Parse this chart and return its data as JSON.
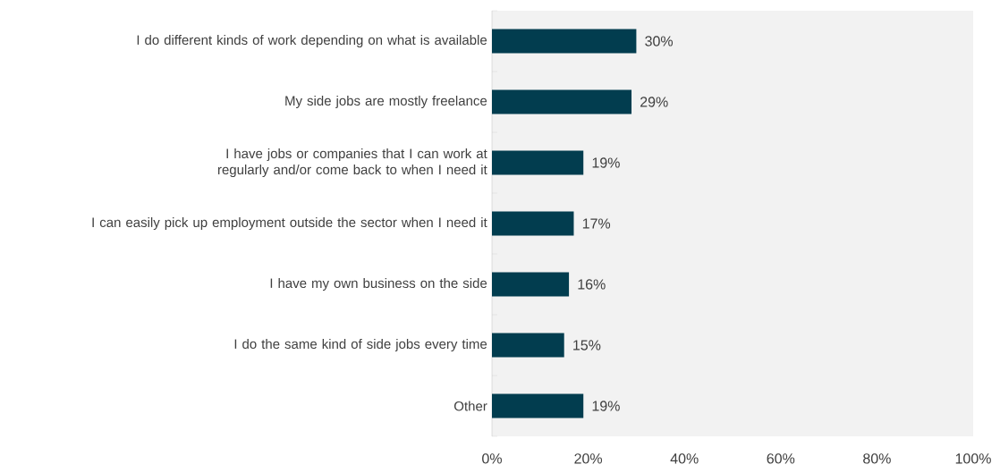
{
  "chart_data": {
    "type": "bar",
    "orientation": "horizontal",
    "categories": [
      "I do different kinds of work depending on what is available",
      "My side jobs are mostly freelance",
      "I have jobs or companies that I can work at regularly and/or come back to when I need it",
      "I can easily pick up employment outside the sector when I need it",
      "I have my own business on the side",
      "I do the same kind of side jobs every time",
      "Other"
    ],
    "values": [
      30,
      29,
      19,
      17,
      16,
      15,
      19
    ],
    "value_labels": [
      "30%",
      "29%",
      "19%",
      "17%",
      "16%",
      "15%",
      "19%"
    ],
    "color": "#023d4f",
    "xlim": [
      0,
      100
    ],
    "xticks": [
      {
        "value": 0,
        "label": "0%"
      },
      {
        "value": 20,
        "label": "20%"
      },
      {
        "value": 40,
        "label": "40%"
      },
      {
        "value": 60,
        "label": "60%"
      },
      {
        "value": 80,
        "label": "80%"
      },
      {
        "value": 100,
        "label": "100%"
      }
    ]
  }
}
